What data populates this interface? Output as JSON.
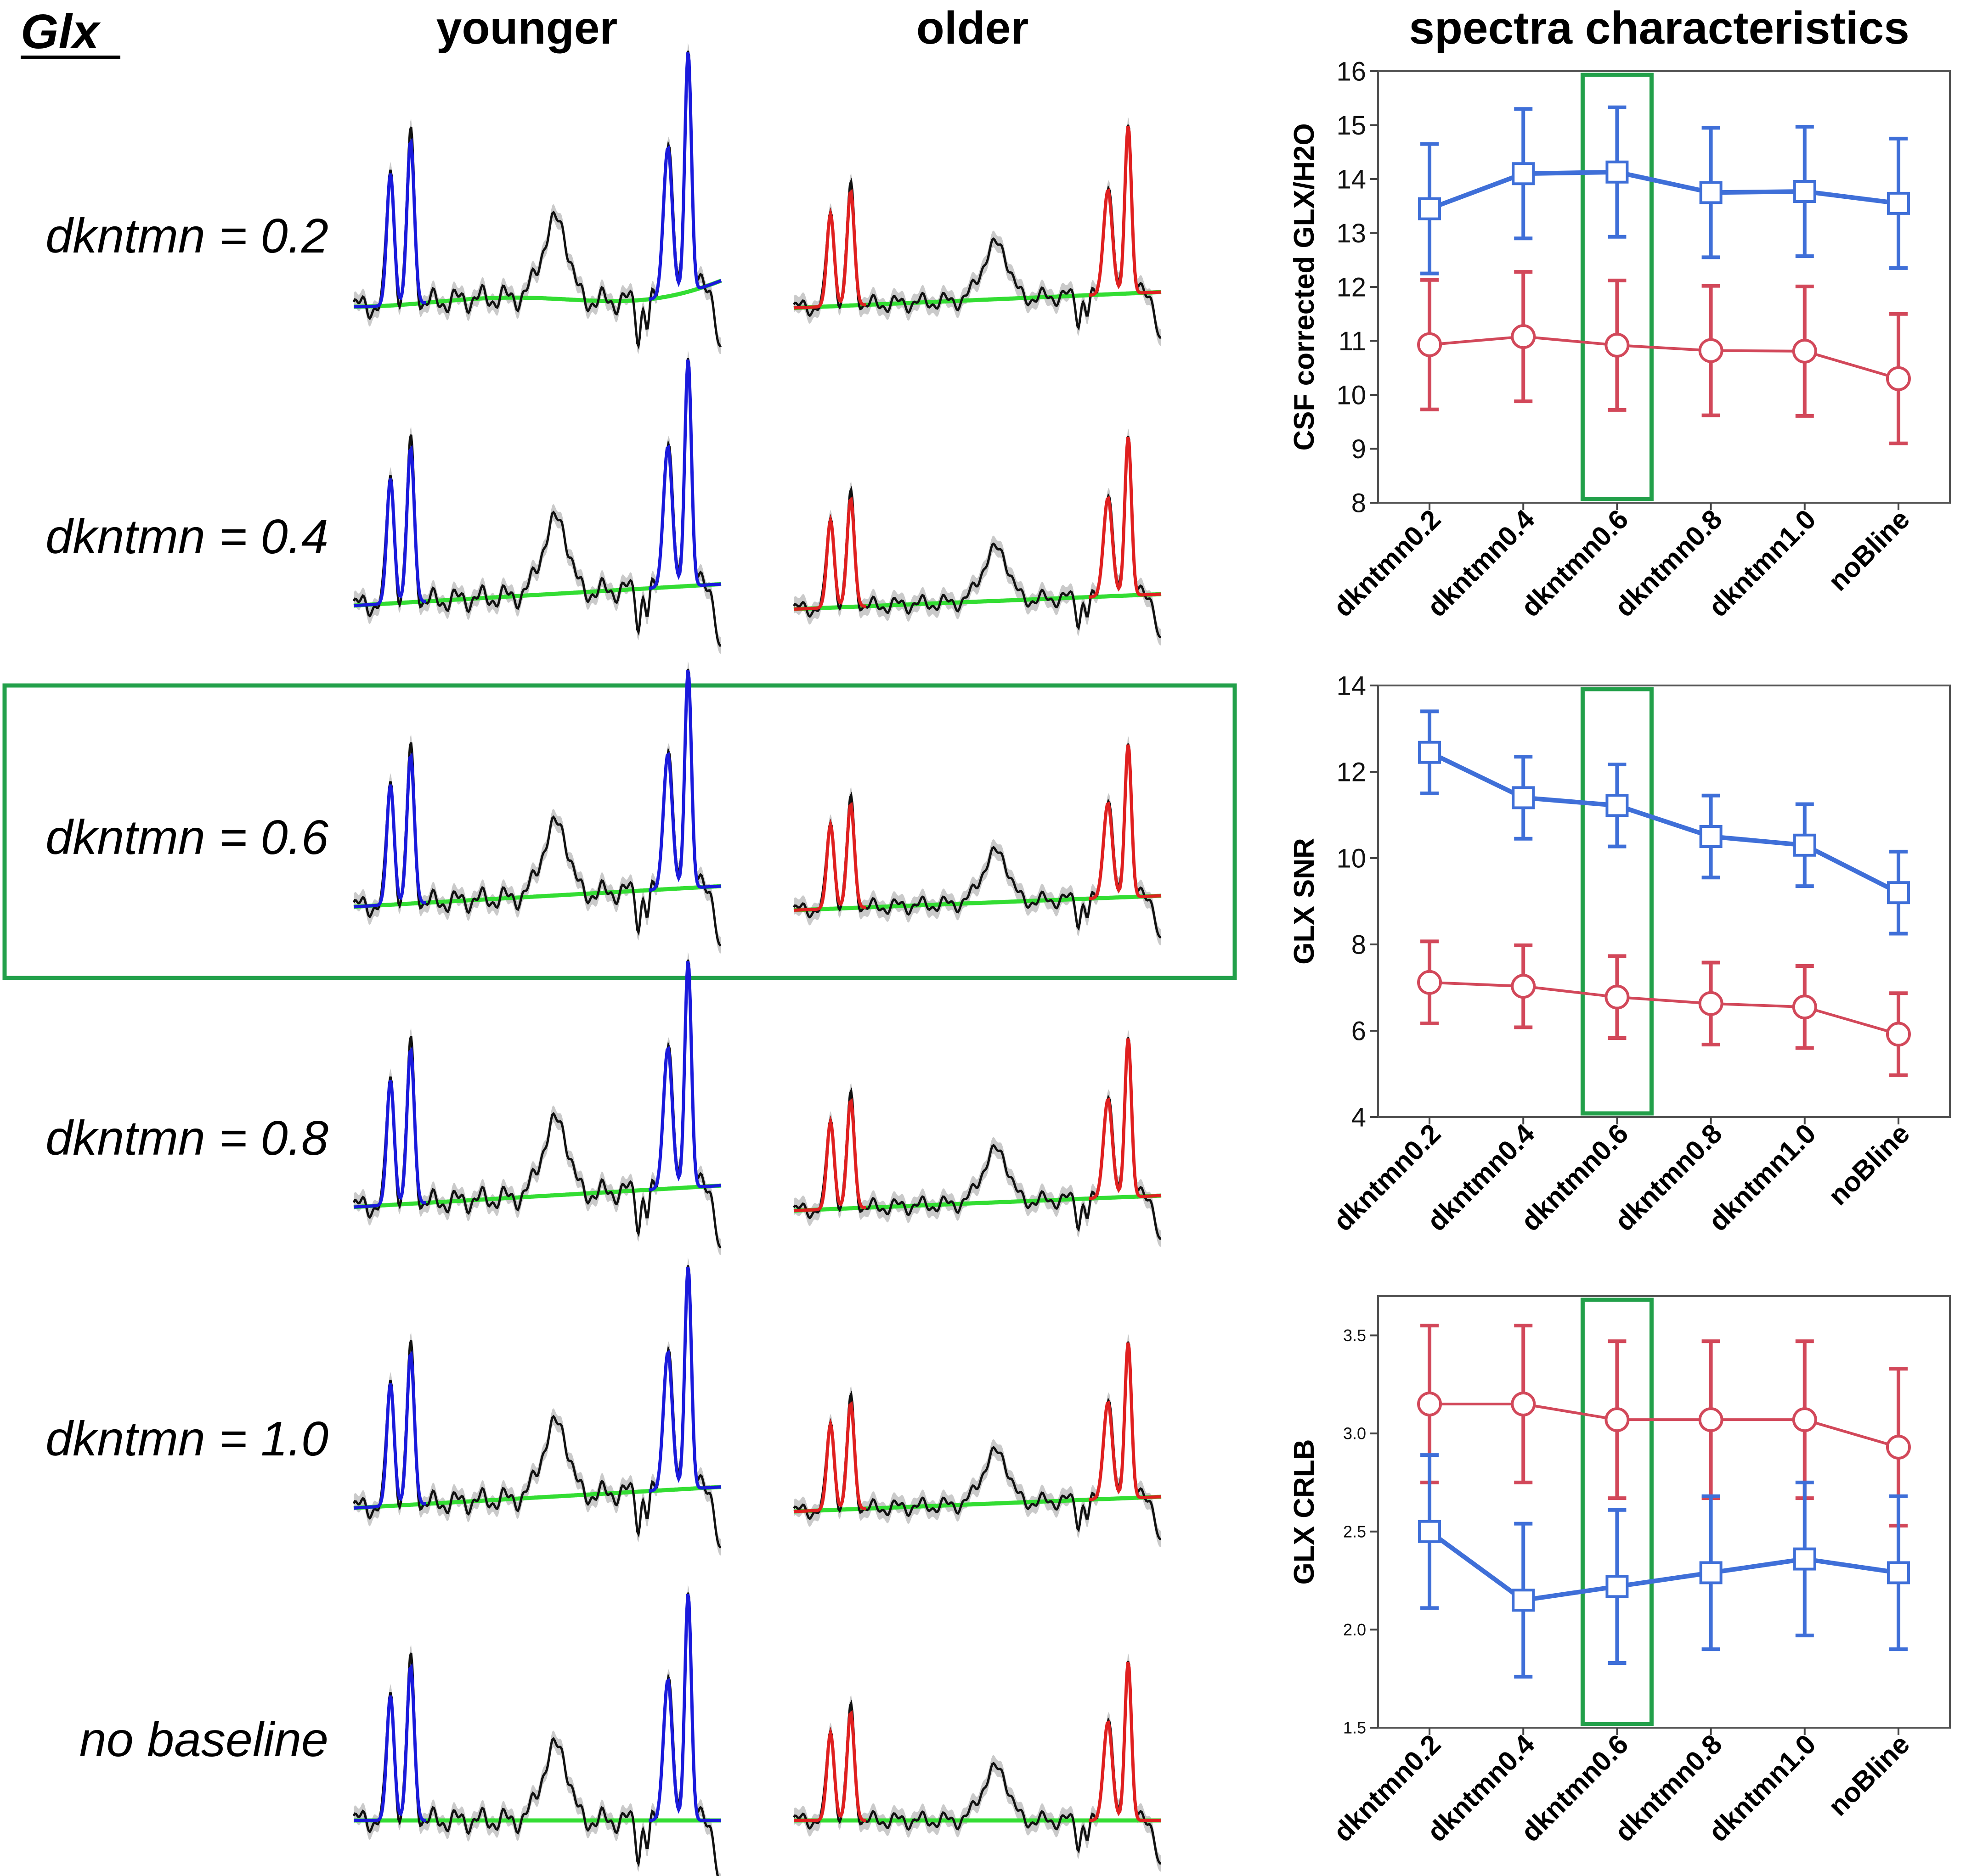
{
  "figure": {
    "panel_title": "Glx",
    "columns": [
      "younger",
      "older"
    ],
    "right_title": "spectra characteristics",
    "row_labels": [
      "dkntmn = 0.2",
      "dkntmn = 0.4",
      "dkntmn = 0.6",
      "dkntmn = 0.8",
      "dkntmn = 1.0",
      "no baseline"
    ],
    "highlighted_row": 2,
    "highlighted_category": "dkntmn0.6",
    "colors": {
      "younger_fit": "#1a1adc",
      "older_fit": "#e02020",
      "baseline": "#33dd33",
      "data": "#111111",
      "data_band": "#b4b4b4",
      "highlight": "#22a04a",
      "series_young": "#3f6fd8",
      "series_old": "#d2485a"
    }
  },
  "chart_data": [
    {
      "type": "line",
      "categories": [
        "dkntmn0.2",
        "dkntmn0.4",
        "dkntmn0.6",
        "dkntmn0.8",
        "dkntmn1.0",
        "noBline"
      ],
      "ylabel": "CSF corrected GLX/H2O",
      "xlabel": "",
      "ylim": [
        8,
        16
      ],
      "yticks": [
        "8",
        "9",
        "10",
        "11",
        "12",
        "13",
        "14",
        "15",
        "16"
      ],
      "grid": false,
      "series": [
        {
          "name": "younger",
          "color": "#3f6fd8",
          "marker": "square",
          "values": [
            13.45,
            14.1,
            14.13,
            13.75,
            13.77,
            13.55
          ],
          "lower": [
            12.25,
            12.9,
            12.93,
            12.55,
            12.57,
            12.35
          ],
          "upper": [
            14.65,
            15.3,
            15.33,
            14.95,
            14.97,
            14.75
          ]
        },
        {
          "name": "older",
          "color": "#d2485a",
          "marker": "circle",
          "values": [
            10.93,
            11.08,
            10.92,
            10.82,
            10.81,
            10.3
          ],
          "lower": [
            9.73,
            9.88,
            9.72,
            9.62,
            9.61,
            9.1
          ],
          "upper": [
            12.13,
            12.28,
            12.12,
            12.02,
            12.01,
            11.5
          ]
        }
      ]
    },
    {
      "type": "line",
      "categories": [
        "dkntmn0.2",
        "dkntmn0.4",
        "dkntmn0.6",
        "dkntmn0.8",
        "dkntmn1.0",
        "noBline"
      ],
      "ylabel": "GLX SNR",
      "xlabel": "",
      "ylim": [
        4,
        14
      ],
      "yticks": [
        "4",
        "6",
        "8",
        "10",
        "12",
        "14"
      ],
      "grid": false,
      "series": [
        {
          "name": "younger",
          "color": "#3f6fd8",
          "marker": "square",
          "values": [
            12.45,
            11.4,
            11.22,
            10.5,
            10.3,
            9.2
          ],
          "lower": [
            11.5,
            10.45,
            10.27,
            9.55,
            9.35,
            8.25
          ],
          "upper": [
            13.4,
            12.35,
            12.17,
            11.45,
            11.25,
            10.15
          ]
        },
        {
          "name": "older",
          "color": "#d2485a",
          "marker": "circle",
          "values": [
            7.12,
            7.03,
            6.78,
            6.63,
            6.55,
            5.92
          ],
          "lower": [
            6.17,
            6.08,
            5.83,
            5.68,
            5.6,
            4.97
          ],
          "upper": [
            8.07,
            7.98,
            7.73,
            7.58,
            7.5,
            6.87
          ]
        }
      ]
    },
    {
      "type": "line",
      "categories": [
        "dkntmn0.2",
        "dkntmn0.4",
        "dkntmn0.6",
        "dkntmn0.8",
        "dkntmn1.0",
        "noBline"
      ],
      "ylabel": "GLX CRLB",
      "xlabel": "",
      "ylim": [
        1.5,
        3.7
      ],
      "yticks": [
        "1.5",
        "2.0",
        "2.5",
        "3.0",
        "3.5"
      ],
      "grid": false,
      "series": [
        {
          "name": "older",
          "color": "#d2485a",
          "marker": "circle",
          "values": [
            3.15,
            3.15,
            3.07,
            3.07,
            3.07,
            2.93
          ],
          "lower": [
            2.75,
            2.75,
            2.67,
            2.67,
            2.67,
            2.53
          ],
          "upper": [
            3.55,
            3.55,
            3.47,
            3.47,
            3.47,
            3.33
          ]
        },
        {
          "name": "younger",
          "color": "#3f6fd8",
          "marker": "square",
          "values": [
            2.5,
            2.15,
            2.22,
            2.29,
            2.36,
            2.29
          ],
          "lower": [
            2.11,
            1.76,
            1.83,
            1.9,
            1.97,
            1.9
          ],
          "upper": [
            2.89,
            2.54,
            2.61,
            2.68,
            2.75,
            2.68
          ]
        }
      ]
    }
  ]
}
